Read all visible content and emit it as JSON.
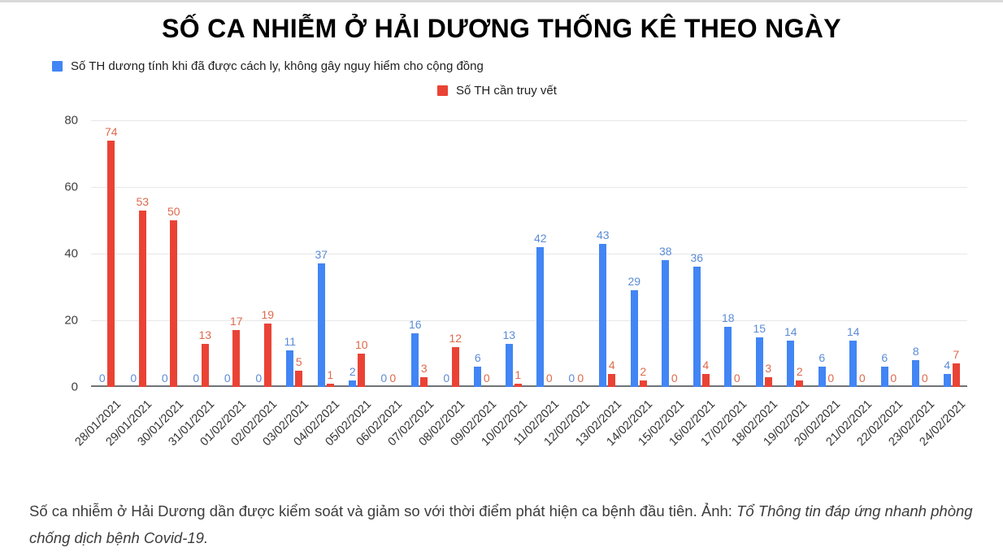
{
  "page": {
    "caption": {
      "normal": "Số ca nhiễm ở Hải Dương dần được kiểm soát và giảm so với thời điểm phát hiện ca bệnh đầu tiên. Ảnh: ",
      "italic": "Tổ Thông tin đáp ứng nhanh phòng chống dịch bệnh Covid-19."
    }
  },
  "chart_data": {
    "type": "bar",
    "title": "SỐ CA NHIỄM Ở HẢI DƯƠNG THỐNG KÊ THEO NGÀY",
    "grid": true,
    "legend_position": "top",
    "ylim": [
      0,
      80
    ],
    "yticks": [
      0,
      20,
      40,
      60,
      80
    ],
    "xlabel": "",
    "ylabel": "",
    "categories": [
      "28/01/2021",
      "29/01/2021",
      "30/01/2021",
      "31/01/2021",
      "01/02/2021",
      "02/02/2021",
      "03/02/2021",
      "04/02/2021",
      "05/02/2021",
      "06/02/2021",
      "07/02/2021",
      "08/02/2021",
      "09/02/2021",
      "10/02/2021",
      "11/02/2021",
      "12/02/2021",
      "13/02/2021",
      "14/02/2021",
      "15/02/2021",
      "16/02/2021",
      "17/02/2021",
      "18/02/2021",
      "19/02/2021",
      "20/02/2021",
      "21/02/2021",
      "22/02/2021",
      "23/02/2021",
      "24/02/2021"
    ],
    "series": [
      {
        "name": "Số TH dương tính khi đã được cách ly, không gây nguy hiểm cho cộng đồng",
        "color": "#4285f4",
        "label_color": "#5b8cd6",
        "values": [
          0,
          0,
          0,
          0,
          0,
          0,
          11,
          37,
          2,
          0,
          16,
          0,
          6,
          13,
          42,
          0,
          43,
          29,
          38,
          36,
          18,
          15,
          14,
          6,
          14,
          6,
          8,
          4
        ]
      },
      {
        "name": "Số TH cần truy vết",
        "color": "#ea4335",
        "label_color": "#dd6a4c",
        "values": [
          74,
          53,
          50,
          13,
          17,
          19,
          5,
          1,
          10,
          0,
          3,
          12,
          0,
          1,
          0,
          0,
          4,
          2,
          0,
          4,
          0,
          3,
          2,
          0,
          0,
          0,
          0,
          7
        ]
      }
    ]
  }
}
